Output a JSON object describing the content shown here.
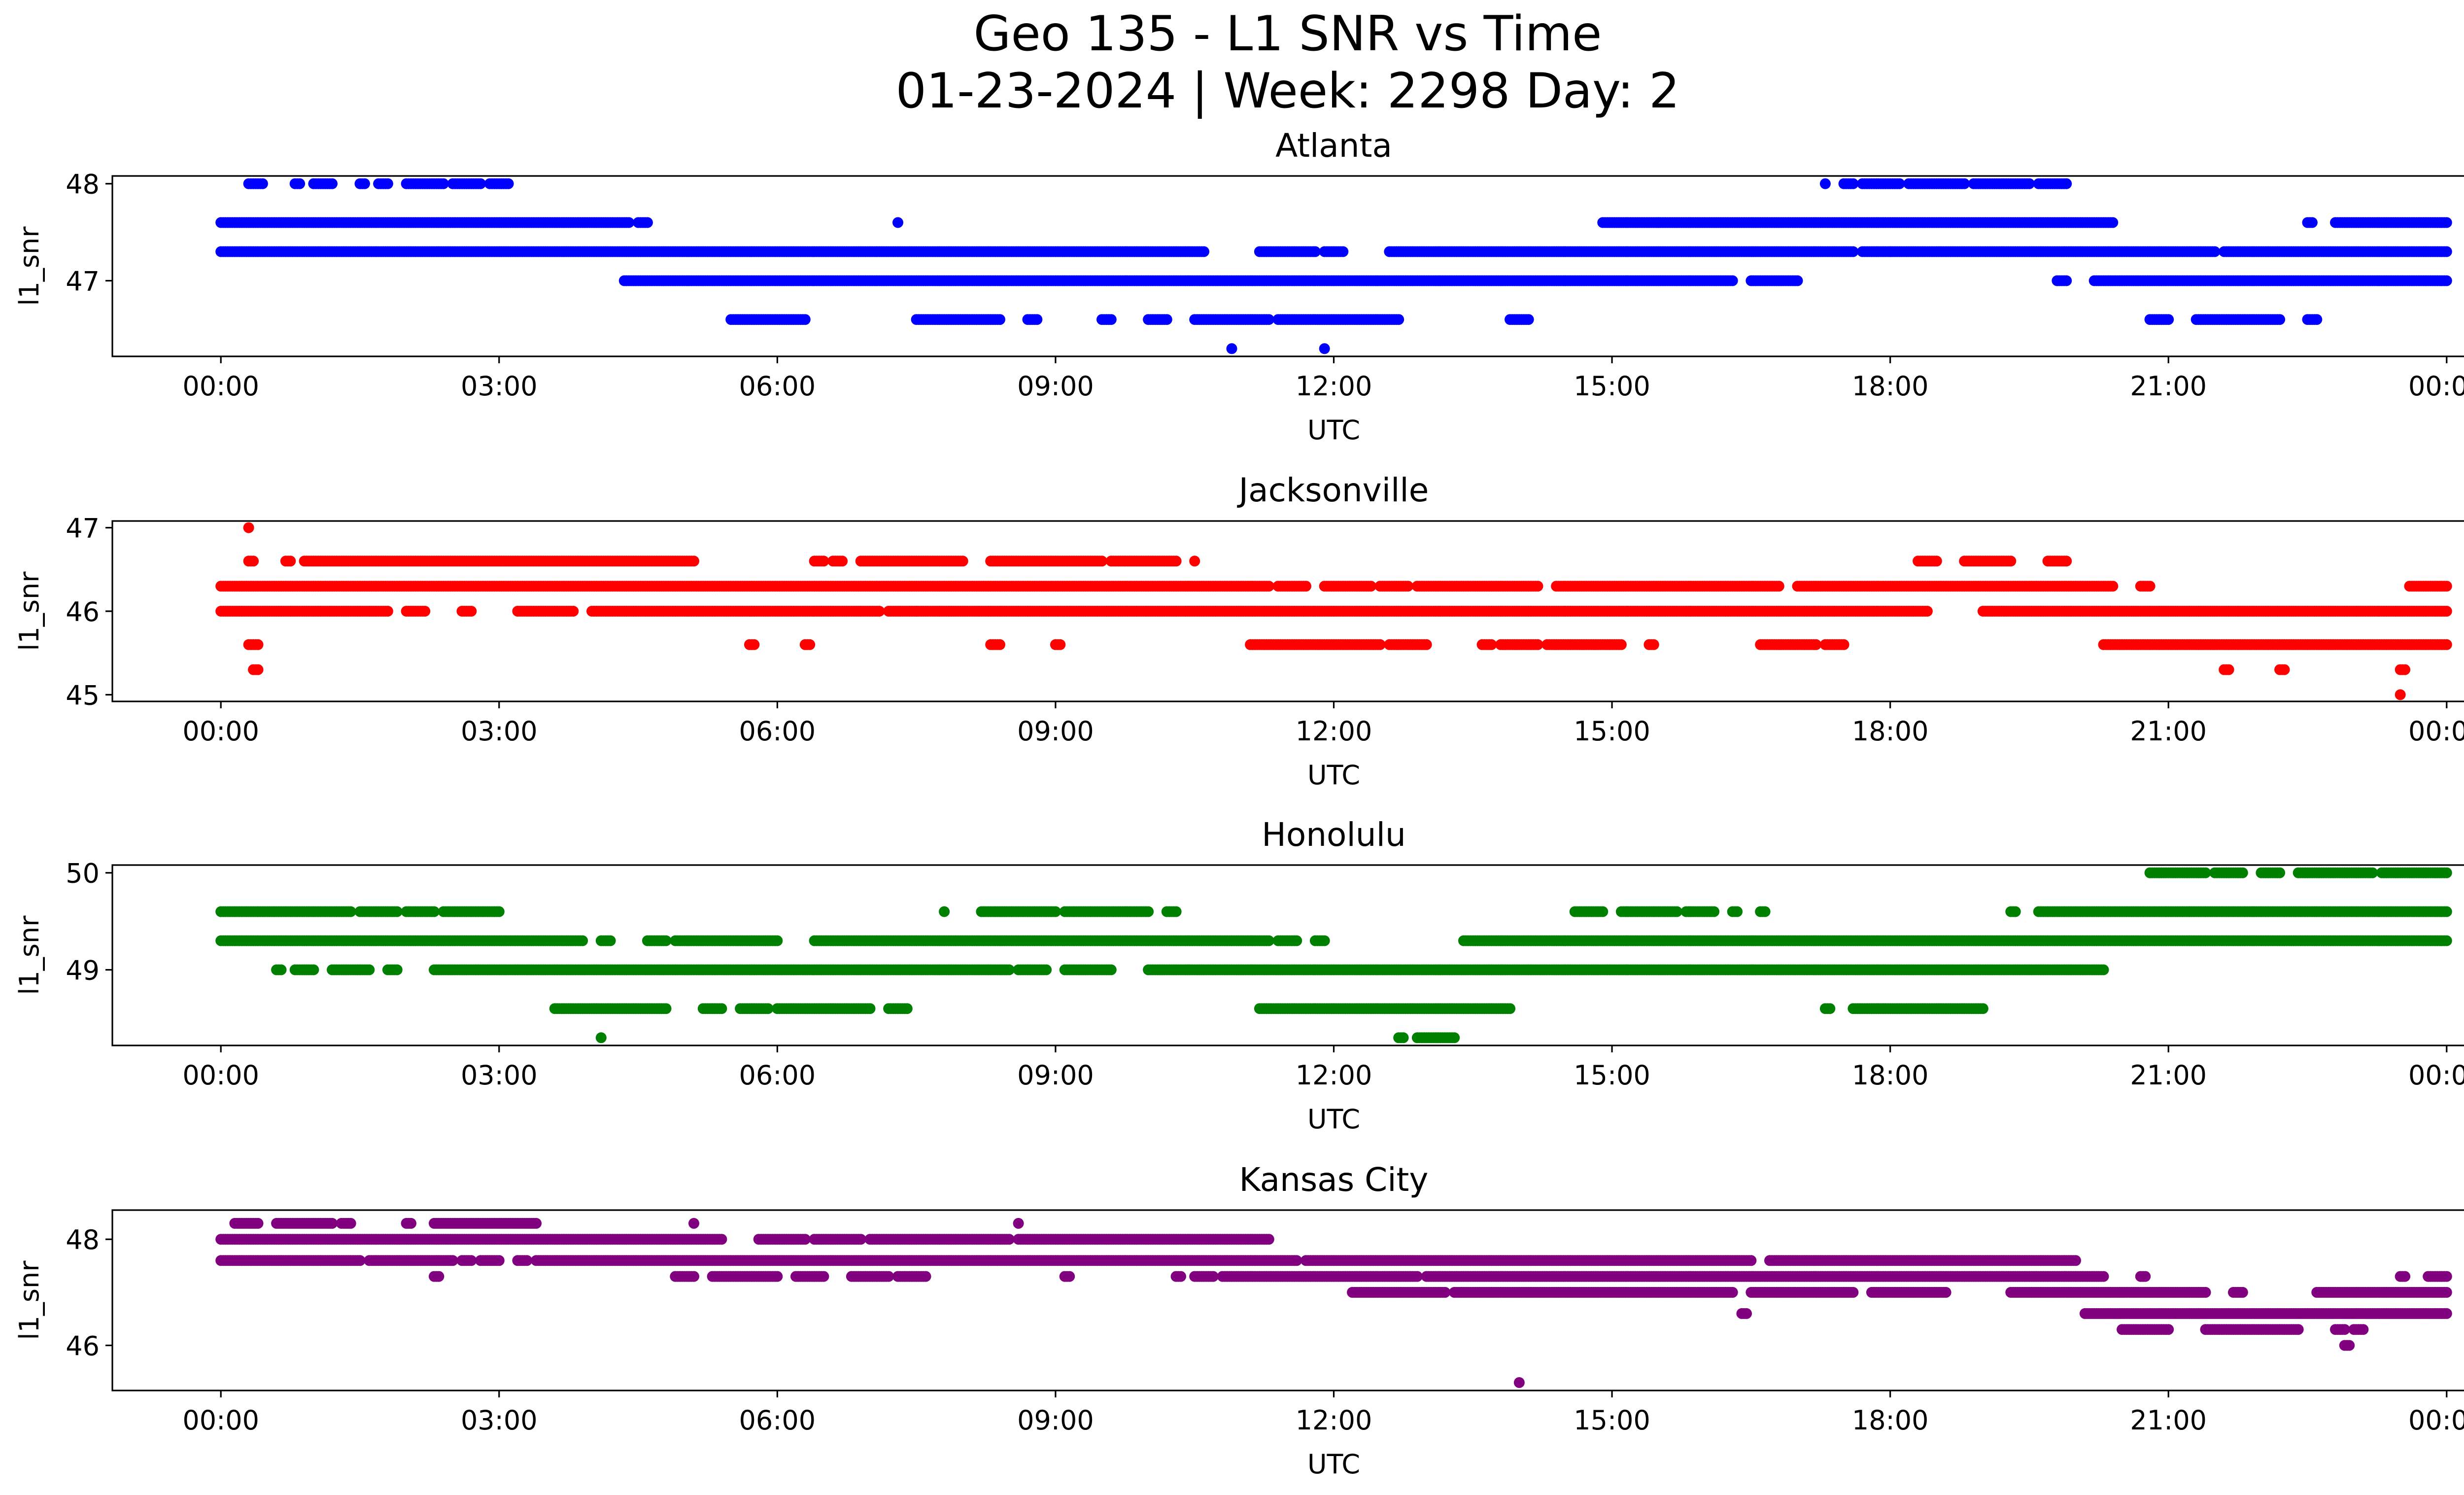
{
  "chart_data": {
    "type": "scatter",
    "title": "Geo 135 - L1 SNR vs Time",
    "subtitle": "01-23-2024 | Week: 2298 Day: 2",
    "xlabel": "UTC",
    "ylabel": "l1_snr",
    "x_ticks": [
      "00:00",
      "03:00",
      "06:00",
      "09:00",
      "12:00",
      "15:00",
      "18:00",
      "21:00",
      "00:00"
    ],
    "x_range_hours": [
      -1.17,
      25.17
    ],
    "grid": false,
    "panels": [
      {
        "title": "Atlanta",
        "color": "#0000ff",
        "ylim": [
          46.22,
          48.08
        ],
        "yticks": [
          47,
          48
        ],
        "series": [
          {
            "y": 48.0,
            "ranges": [
              [
                0.3,
                0.45
              ],
              [
                0.8,
                0.85
              ],
              [
                1.0,
                1.2
              ],
              [
                1.5,
                1.55
              ],
              [
                1.7,
                1.8
              ],
              [
                2.0,
                2.4
              ],
              [
                2.5,
                2.8
              ],
              [
                2.9,
                3.1
              ],
              [
                17.3,
                17.32
              ],
              [
                17.5,
                17.6
              ],
              [
                17.7,
                18.1
              ],
              [
                18.2,
                18.8
              ],
              [
                18.9,
                19.5
              ],
              [
                19.6,
                19.9
              ]
            ]
          },
          {
            "y": 47.6,
            "ranges": [
              [
                0,
                4.4
              ],
              [
                4.5,
                4.6
              ],
              [
                7.3,
                7.32
              ],
              [
                14.9,
                15.5
              ],
              [
                15.5,
                20.4
              ],
              [
                22.5,
                22.55
              ],
              [
                22.8,
                24
              ]
            ]
          },
          {
            "y": 47.3,
            "ranges": [
              [
                0,
                10.6
              ],
              [
                11.2,
                11.8
              ],
              [
                11.9,
                12.1
              ],
              [
                12.6,
                17.6
              ],
              [
                17.7,
                18
              ],
              [
                18,
                21.5
              ],
              [
                21.6,
                24
              ]
            ]
          },
          {
            "y": 47.0,
            "ranges": [
              [
                4.35,
                16.3
              ],
              [
                16.5,
                17.0
              ],
              [
                19.8,
                19.9
              ],
              [
                20.2,
                24
              ]
            ]
          },
          {
            "y": 46.6,
            "ranges": [
              [
                5.5,
                6.3
              ],
              [
                7.5,
                8.4
              ],
              [
                8.7,
                8.8
              ],
              [
                9.5,
                9.6
              ],
              [
                10.0,
                10.2
              ],
              [
                10.5,
                11.3
              ],
              [
                11.4,
                12.7
              ],
              [
                13.9,
                14.1
              ],
              [
                20.8,
                21.0
              ],
              [
                21.3,
                22.2
              ],
              [
                22.5,
                22.6
              ]
            ]
          },
          {
            "y": 46.3,
            "ranges": [
              [
                10.9,
                10.92
              ],
              [
                11.9,
                11.92
              ]
            ]
          }
        ]
      },
      {
        "title": "Jacksonville",
        "color": "#ff0000",
        "ylim": [
          44.92,
          47.08
        ],
        "yticks": [
          45,
          46,
          47
        ],
        "series": [
          {
            "y": 47.0,
            "ranges": [
              [
                0.3,
                0.32
              ]
            ]
          },
          {
            "y": 46.6,
            "ranges": [
              [
                0.3,
                0.35
              ],
              [
                0.7,
                0.75
              ],
              [
                0.9,
                5.1
              ],
              [
                6.4,
                6.5
              ],
              [
                6.6,
                6.7
              ],
              [
                6.9,
                8.0
              ],
              [
                8.3,
                9.5
              ],
              [
                9.6,
                10.3
              ],
              [
                10.5,
                10.52
              ],
              [
                18.3,
                18.5
              ],
              [
                18.8,
                19.3
              ],
              [
                19.7,
                19.9
              ]
            ]
          },
          {
            "y": 46.3,
            "ranges": [
              [
                0,
                11.3
              ],
              [
                11.4,
                11.7
              ],
              [
                11.9,
                12.4
              ],
              [
                12.5,
                12.8
              ],
              [
                12.9,
                14.2
              ],
              [
                14.4,
                16.8
              ],
              [
                17.0,
                20.4
              ],
              [
                20.7,
                20.8
              ],
              [
                23.6,
                24
              ]
            ]
          },
          {
            "y": 46.0,
            "ranges": [
              [
                0,
                1.8
              ],
              [
                2.0,
                2.2
              ],
              [
                2.6,
                2.7
              ],
              [
                3.2,
                3.8
              ],
              [
                4.0,
                7.1
              ],
              [
                7.2,
                7.5
              ],
              [
                7.5,
                18.4
              ],
              [
                19.0,
                24
              ]
            ]
          },
          {
            "y": 45.6,
            "ranges": [
              [
                0.3,
                0.4
              ],
              [
                5.7,
                5.75
              ],
              [
                6.3,
                6.35
              ],
              [
                8.3,
                8.4
              ],
              [
                9.0,
                9.05
              ],
              [
                11.1,
                12.5
              ],
              [
                12.6,
                13.0
              ],
              [
                13.6,
                13.7
              ],
              [
                13.8,
                14.2
              ],
              [
                14.3,
                15.1
              ],
              [
                15.4,
                15.45
              ],
              [
                16.6,
                17.2
              ],
              [
                17.3,
                17.5
              ],
              [
                20.3,
                24
              ]
            ]
          },
          {
            "y": 45.3,
            "ranges": [
              [
                0.35,
                0.4
              ],
              [
                21.6,
                21.65
              ],
              [
                22.2,
                22.25
              ],
              [
                23.5,
                23.55
              ]
            ]
          },
          {
            "y": 45.0,
            "ranges": [
              [
                23.5,
                23.52
              ]
            ]
          }
        ]
      },
      {
        "title": "Honolulu",
        "color": "#008000",
        "ylim": [
          48.22,
          50.08
        ],
        "yticks": [
          49,
          50
        ],
        "series": [
          {
            "y": 50.0,
            "ranges": [
              [
                20.8,
                21.4
              ],
              [
                21.5,
                21.8
              ],
              [
                22.0,
                22.2
              ],
              [
                22.4,
                23.2
              ],
              [
                23.3,
                24
              ]
            ]
          },
          {
            "y": 49.6,
            "ranges": [
              [
                0,
                1.4
              ],
              [
                1.5,
                1.9
              ],
              [
                2.0,
                2.3
              ],
              [
                2.4,
                3.0
              ],
              [
                7.8,
                7.82
              ],
              [
                8.2,
                9.0
              ],
              [
                9.1,
                10.0
              ],
              [
                10.2,
                10.3
              ],
              [
                14.6,
                14.9
              ],
              [
                15.1,
                15.7
              ],
              [
                15.8,
                16.1
              ],
              [
                16.3,
                16.35
              ],
              [
                16.6,
                16.65
              ],
              [
                19.3,
                19.35
              ],
              [
                19.6,
                24
              ]
            ]
          },
          {
            "y": 49.3,
            "ranges": [
              [
                0,
                3.9
              ],
              [
                4.1,
                4.2
              ],
              [
                4.6,
                4.8
              ],
              [
                4.9,
                6.0
              ],
              [
                6.4,
                11.3
              ],
              [
                11.4,
                11.6
              ],
              [
                11.8,
                11.9
              ],
              [
                13.4,
                24
              ]
            ]
          },
          {
            "y": 49.0,
            "ranges": [
              [
                0.6,
                0.65
              ],
              [
                0.8,
                1.0
              ],
              [
                1.2,
                1.6
              ],
              [
                1.8,
                1.9
              ],
              [
                2.3,
                8.5
              ],
              [
                8.6,
                8.9
              ],
              [
                9.1,
                9.6
              ],
              [
                10.0,
                20.3
              ]
            ]
          },
          {
            "y": 48.6,
            "ranges": [
              [
                3.6,
                4.8
              ],
              [
                5.2,
                5.4
              ],
              [
                5.6,
                5.9
              ],
              [
                6.0,
                7.0
              ],
              [
                7.2,
                7.4
              ],
              [
                11.2,
                13.9
              ],
              [
                17.3,
                17.35
              ],
              [
                17.6,
                19.0
              ]
            ]
          },
          {
            "y": 48.3,
            "ranges": [
              [
                4.1,
                4.12
              ],
              [
                12.7,
                12.75
              ],
              [
                12.9,
                13.3
              ]
            ]
          }
        ]
      },
      {
        "title": "Kansas City",
        "color": "#800080",
        "ylim": [
          45.15,
          48.55
        ],
        "yticks": [
          46,
          48
        ],
        "series": [
          {
            "y": 48.3,
            "ranges": [
              [
                0.15,
                0.4
              ],
              [
                0.6,
                1.2
              ],
              [
                1.3,
                1.4
              ],
              [
                2.0,
                2.05
              ],
              [
                2.3,
                3.4
              ],
              [
                5.1,
                5.12
              ],
              [
                8.6,
                8.62
              ]
            ]
          },
          {
            "y": 48.0,
            "ranges": [
              [
                0,
                5.4
              ],
              [
                5.8,
                6.3
              ],
              [
                6.4,
                6.9
              ],
              [
                7.0,
                8.5
              ],
              [
                8.6,
                11.3
              ]
            ]
          },
          {
            "y": 47.6,
            "ranges": [
              [
                0,
                1.5
              ],
              [
                1.6,
                2.5
              ],
              [
                2.6,
                2.7
              ],
              [
                2.8,
                3.0
              ],
              [
                3.2,
                3.3
              ],
              [
                3.4,
                11.6
              ],
              [
                11.7,
                16.5
              ],
              [
                16.7,
                20.0
              ]
            ]
          },
          {
            "y": 47.3,
            "ranges": [
              [
                2.3,
                2.35
              ],
              [
                4.9,
                5.1
              ],
              [
                5.3,
                6.0
              ],
              [
                6.2,
                6.5
              ],
              [
                6.8,
                7.2
              ],
              [
                7.3,
                7.6
              ],
              [
                9.1,
                9.15
              ],
              [
                10.3,
                10.35
              ],
              [
                10.5,
                10.7
              ],
              [
                10.8,
                12.9
              ],
              [
                13.0,
                20.3
              ],
              [
                20.7,
                20.75
              ],
              [
                23.5,
                23.55
              ],
              [
                23.8,
                24
              ]
            ]
          },
          {
            "y": 47.0,
            "ranges": [
              [
                12.2,
                13.2
              ],
              [
                13.3,
                16.3
              ],
              [
                16.5,
                17.6
              ],
              [
                17.8,
                18.6
              ],
              [
                19.3,
                21.4
              ],
              [
                21.7,
                21.8
              ],
              [
                22.6,
                24
              ]
            ]
          },
          {
            "y": 46.6,
            "ranges": [
              [
                16.4,
                16.45
              ],
              [
                20.1,
                24
              ]
            ]
          },
          {
            "y": 46.3,
            "ranges": [
              [
                20.5,
                21.0
              ],
              [
                21.4,
                22.4
              ],
              [
                22.8,
                22.9
              ],
              [
                23.0,
                23.1
              ]
            ]
          },
          {
            "y": 46.0,
            "ranges": [
              [
                22.9,
                22.95
              ]
            ]
          },
          {
            "y": 45.3,
            "ranges": [
              [
                14.0,
                14.02
              ]
            ]
          }
        ]
      }
    ]
  }
}
